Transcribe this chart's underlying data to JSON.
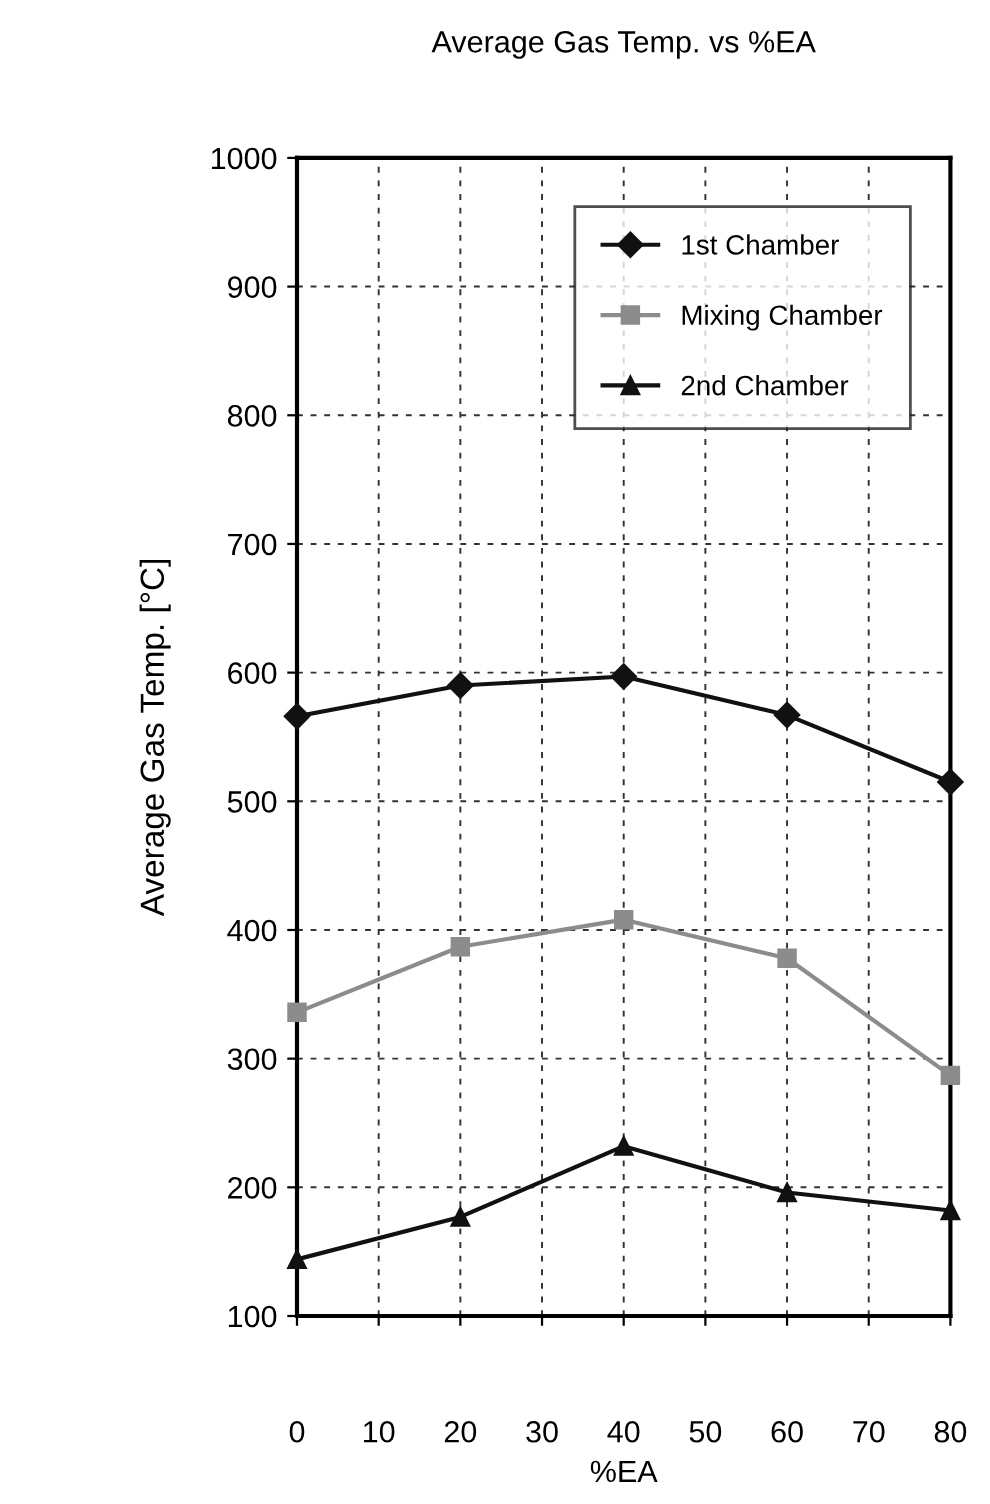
{
  "chart_data": {
    "type": "line",
    "title": "Average Gas Temp. vs %EA",
    "xlabel": "%EA",
    "ylabel": "Average Gas Temp. [°C]",
    "x": [
      0,
      20,
      40,
      60,
      80
    ],
    "series": [
      {
        "name": "1st Chamber",
        "color": "#111111",
        "values": [
          566,
          590,
          597,
          567,
          515
        ],
        "marker": "diamond",
        "line_style": "solid"
      },
      {
        "name": "Mixing Chamber",
        "color": "#8c8c8c",
        "values": [
          336,
          387,
          408,
          378,
          287
        ],
        "marker": "square",
        "line_style": "solid"
      },
      {
        "name": "2nd Chamber",
        "color": "#111111",
        "values": [
          144,
          177,
          232,
          196,
          182
        ],
        "marker": "triangle",
        "line_style": "solid"
      }
    ],
    "xlim": [
      0,
      80
    ],
    "xticks": [
      0,
      10,
      20,
      30,
      40,
      50,
      60,
      70,
      80
    ],
    "ylim": [
      100,
      1000
    ],
    "yticks": [
      100,
      200,
      300,
      400,
      500,
      600,
      700,
      800,
      900,
      1000
    ],
    "grid": true,
    "legend": "top right"
  }
}
